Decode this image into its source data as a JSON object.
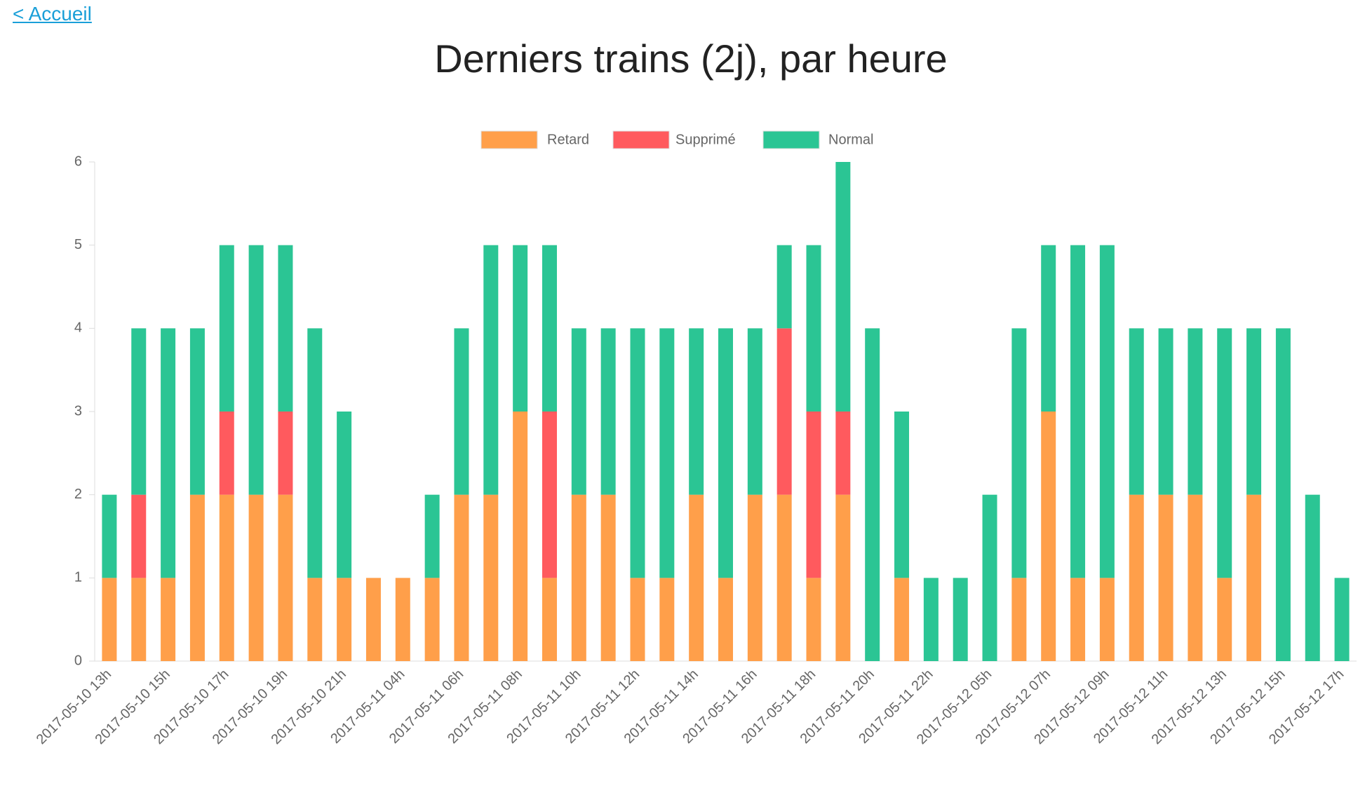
{
  "nav": {
    "link": "< Accueil"
  },
  "chart_data": {
    "type": "stacked-bar",
    "title": "Derniers trains (2j), par heure",
    "categories": [
      "2017-05-10 13h",
      null,
      "2017-05-10 15h",
      null,
      "2017-05-10 17h",
      null,
      "2017-05-10 19h",
      null,
      "2017-05-10 21h",
      null,
      "2017-05-11 04h",
      null,
      "2017-05-11 06h",
      null,
      "2017-05-11 08h",
      null,
      "2017-05-11 10h",
      null,
      "2017-05-11 12h",
      null,
      "2017-05-11 14h",
      null,
      "2017-05-11 16h",
      null,
      "2017-05-11 18h",
      null,
      "2017-05-11 20h",
      null,
      "2017-05-11 22h",
      null,
      "2017-05-12 05h",
      null,
      "2017-05-12 07h",
      null,
      "2017-05-12 09h",
      null,
      "2017-05-12 11h",
      null,
      "2017-05-12 13h",
      null,
      "2017-05-12 15h",
      null,
      "2017-05-12 17h"
    ],
    "series": [
      {
        "name": "Retard",
        "color": "#ff9f4a",
        "values": [
          1,
          1,
          1,
          2,
          2,
          2,
          2,
          1,
          1,
          1,
          1,
          1,
          2,
          2,
          3,
          1,
          2,
          2,
          1,
          1,
          2,
          1,
          2,
          2,
          1,
          2,
          0,
          1,
          0,
          0,
          0,
          1,
          3,
          1,
          1,
          2,
          2,
          2,
          1,
          2,
          0,
          0,
          0
        ]
      },
      {
        "name": "Supprimé",
        "color": "#ff5a5e",
        "values": [
          0,
          1,
          0,
          0,
          1,
          0,
          1,
          0,
          0,
          0,
          0,
          0,
          0,
          0,
          0,
          2,
          0,
          0,
          0,
          0,
          0,
          0,
          0,
          2,
          2,
          1,
          0,
          0,
          0,
          0,
          0,
          0,
          0,
          0,
          0,
          0,
          0,
          0,
          0,
          0,
          0,
          0,
          0
        ]
      },
      {
        "name": "Normal",
        "color": "#2bc594",
        "values": [
          1,
          2,
          3,
          2,
          2,
          3,
          2,
          3,
          2,
          0,
          0,
          1,
          2,
          3,
          2,
          2,
          2,
          2,
          3,
          3,
          2,
          3,
          2,
          1,
          2,
          3,
          4,
          2,
          1,
          1,
          2,
          3,
          2,
          4,
          4,
          2,
          2,
          2,
          3,
          2,
          4,
          2,
          1
        ]
      }
    ],
    "ylim": [
      0,
      6
    ],
    "yticks": [
      0,
      1,
      2,
      3,
      4,
      5,
      6
    ],
    "legend": "top"
  }
}
